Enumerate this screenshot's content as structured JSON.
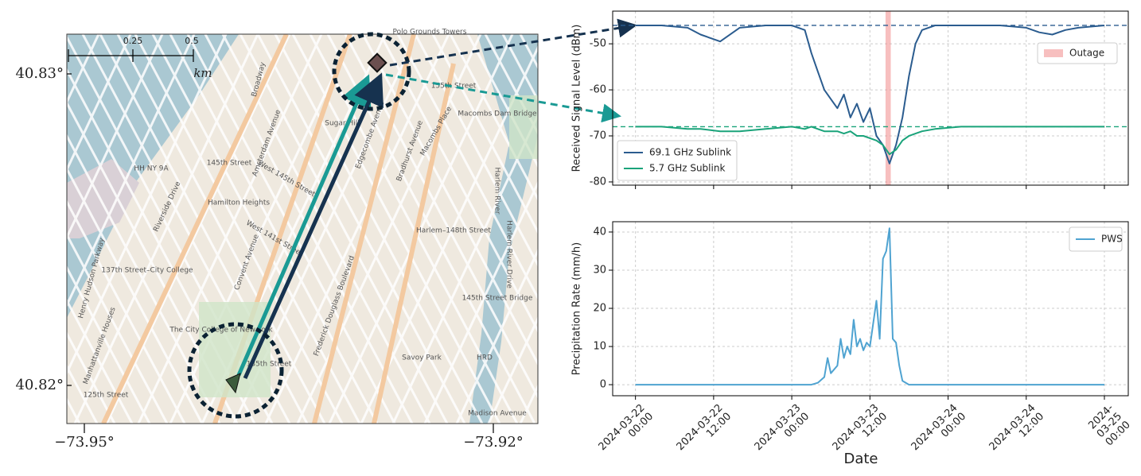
{
  "map": {
    "lat_labels": [
      "40.83°",
      "40.82°"
    ],
    "lon_labels": [
      "−73.95°",
      "−73.92°"
    ],
    "scale_labels": [
      "0.25",
      "0.5"
    ],
    "scale_unit": "km",
    "labels": [
      "Polo Grounds Towers",
      "155th Street",
      "Macombs Dam Bridge",
      "Macombs Place",
      "Harlem River",
      "Harlem River Drive",
      "Broadway",
      "Riverside Drive",
      "West 145th Street",
      "Amsterdam Avenue",
      "Edgecombe Avenue",
      "Bradhurst Avenue",
      "Hamilton Heights",
      "Sugar Hill",
      "145th Street",
      "Harlem–148th Street",
      "137th Street–City College",
      "The City College of New York",
      "Frederick Douglass Boulevard",
      "Manhattanville Houses",
      "Savoy Park",
      "145th Street Bridge",
      "Madison Avenue",
      "HH NY 9A",
      "HRD",
      "125th Street",
      "135th Street",
      "Henry Hudson Parkway",
      "West 141st Street",
      "Convent Avenue"
    ]
  },
  "chart_data": [
    {
      "type": "line",
      "ylabel": "Received Signal Level (dBm)",
      "x": [
        "2024-03-22 00:00",
        "2024-03-22 04:00",
        "2024-03-22 08:00",
        "2024-03-22 10:00",
        "2024-03-22 13:00",
        "2024-03-22 16:00",
        "2024-03-22 20:00",
        "2024-03-23 00:00",
        "2024-03-23 02:00",
        "2024-03-23 03:00",
        "2024-03-23 04:00",
        "2024-03-23 05:00",
        "2024-03-23 06:00",
        "2024-03-23 07:00",
        "2024-03-23 08:00",
        "2024-03-23 09:00",
        "2024-03-23 10:00",
        "2024-03-23 11:00",
        "2024-03-23 12:00",
        "2024-03-23 13:00",
        "2024-03-23 14:00",
        "2024-03-23 15:00",
        "2024-03-23 16:00",
        "2024-03-23 17:00",
        "2024-03-23 18:00",
        "2024-03-23 19:00",
        "2024-03-23 20:00",
        "2024-03-23 22:00",
        "2024-03-24 02:00",
        "2024-03-24 08:00",
        "2024-03-24 12:00",
        "2024-03-24 14:00",
        "2024-03-24 16:00",
        "2024-03-24 18:00",
        "2024-03-24 20:00",
        "2024-03-25 00:00"
      ],
      "series": [
        {
          "name": "69.1 GHz Sublink",
          "color": "#2b5c8f",
          "values": [
            -46,
            -46,
            -46.5,
            -48,
            -49.5,
            -46.5,
            -46,
            -46,
            -47,
            -52,
            -56,
            -60,
            -62,
            -64,
            -61,
            -66,
            -63,
            -67,
            -64,
            -70,
            -72,
            -76,
            -72,
            -66,
            -57,
            -50,
            -47,
            -46,
            -46,
            -46,
            -46.5,
            -47.5,
            -48,
            -47,
            -46.5,
            -46
          ]
        },
        {
          "name": "5.7 GHz Sublink",
          "color": "#1aa37a",
          "values": [
            -68,
            -68,
            -68.5,
            -68.5,
            -69,
            -69,
            -68.5,
            -68,
            -68.5,
            -68,
            -68.5,
            -69,
            -69,
            -69,
            -69.5,
            -69,
            -70,
            -70,
            -70.5,
            -71,
            -72,
            -74,
            -73,
            -71,
            -70,
            -69.5,
            -69,
            -68.5,
            -68,
            -68,
            -68,
            -68,
            -68,
            -68,
            -68,
            -68
          ]
        }
      ],
      "hlines": [
        {
          "value": -46,
          "color": "#2b5c8f"
        },
        {
          "value": -68,
          "color": "#1aa37a"
        }
      ],
      "outage": {
        "name": "Outage",
        "color": "#f08080",
        "x": [
          "2024-03-23 14:24",
          "2024-03-23 15:12"
        ]
      },
      "xlim": [
        "2024-03-21 20:30",
        "2024-03-25 03:40"
      ],
      "xticks": [
        "2024-03-22 00:00",
        "2024-03-22 12:00",
        "2024-03-23 00:00",
        "2024-03-23 12:00",
        "2024-03-24 00:00",
        "2024-03-24 12:00",
        "2024-03-25 00:00"
      ],
      "ylim": [
        -80.7,
        -42.9
      ],
      "yticks": [
        -80,
        -70,
        -60,
        -50
      ],
      "grid": true,
      "legend": "lower left",
      "outage_legend": "upper right"
    },
    {
      "type": "line",
      "ylabel": "Precipitation Rate (mm/h)",
      "xlabel": "Date",
      "x": [
        "2024-03-22 00:00",
        "2024-03-23 03:00",
        "2024-03-23 04:00",
        "2024-03-23 05:00",
        "2024-03-23 05:30",
        "2024-03-23 06:00",
        "2024-03-23 07:00",
        "2024-03-23 07:30",
        "2024-03-23 08:00",
        "2024-03-23 08:30",
        "2024-03-23 09:00",
        "2024-03-23 09:30",
        "2024-03-23 10:00",
        "2024-03-23 10:30",
        "2024-03-23 11:00",
        "2024-03-23 11:30",
        "2024-03-23 12:00",
        "2024-03-23 13:00",
        "2024-03-23 13:30",
        "2024-03-23 14:00",
        "2024-03-23 14:30",
        "2024-03-23 15:00",
        "2024-03-23 15:30",
        "2024-03-23 16:00",
        "2024-03-23 16:30",
        "2024-03-23 17:00",
        "2024-03-23 18:00",
        "2024-03-25 00:00"
      ],
      "series": [
        {
          "name": "PWS",
          "color": "#4fa3d1",
          "values": [
            0,
            0,
            0.5,
            2,
            7,
            3,
            5,
            12,
            7,
            10,
            8,
            17,
            10,
            12,
            9,
            11,
            10,
            22,
            12,
            33,
            35,
            41,
            12,
            11,
            5,
            1,
            0,
            0
          ]
        }
      ],
      "xlim": [
        "2024-03-21 20:30",
        "2024-03-25 03:40"
      ],
      "xticks": [
        {
          "value": "2024-03-22 00:00",
          "label": "2024-03-22\n00:00"
        },
        {
          "value": "2024-03-22 12:00",
          "label": "2024-03-22\n12:00"
        },
        {
          "value": "2024-03-23 00:00",
          "label": "2024-03-23\n00:00"
        },
        {
          "value": "2024-03-23 12:00",
          "label": "2024-03-23\n12:00"
        },
        {
          "value": "2024-03-24 00:00",
          "label": "2024-03-24\n00:00"
        },
        {
          "value": "2024-03-24 12:00",
          "label": "2024-03-24\n12:00"
        },
        {
          "value": "2024-03-25 00:00",
          "label": "2024-03-25\n00:00"
        }
      ],
      "ylim": [
        -2.9,
        42.7
      ],
      "yticks": [
        0,
        10,
        20,
        30,
        40
      ],
      "grid": true,
      "legend": "upper right"
    }
  ]
}
